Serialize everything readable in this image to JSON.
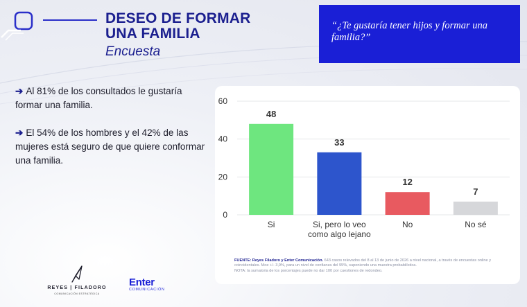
{
  "header": {
    "title_line1": "DESEO DE FORMAR",
    "title_line2": "UNA FAMILIA",
    "subtitle": "Encuesta"
  },
  "question": "“¿Te gustaría tener hijos y formar una familia?”",
  "bullets": [
    "Al 81% de los consultados le gustaría formar una familia.",
    "El 54% de los hombres y el 42% de las mujeres está seguro de que quiere conformar una familia."
  ],
  "chart_data": {
    "type": "bar",
    "categories": [
      "Si",
      "Si, pero lo veo como algo lejano",
      "No",
      "No sé"
    ],
    "category_lines": [
      [
        "Si"
      ],
      [
        "Si, pero lo veo",
        "como algo lejano"
      ],
      [
        "No"
      ],
      [
        "No sé"
      ]
    ],
    "values": [
      48,
      33,
      12,
      7
    ],
    "data_labels": [
      "48",
      "33",
      "12",
      "7"
    ],
    "colors": [
      "#6ee67f",
      "#2d55cc",
      "#e85a60",
      "#d6d7da"
    ],
    "ylim": [
      0,
      60
    ],
    "yticks": [
      0,
      20,
      40,
      60
    ],
    "grid": true
  },
  "source": {
    "label": "FUENTE: Reyes Filadoro y Enter Comunicación.",
    "text": " 643 casos relevados del 8 al 13 de junio de 2026 a nivel nacional, a través de encuestas online y coincidentales. Moe +/- 3,9%, para un nivel de confianza del 95%, suponiendo una muestra probabilística.",
    "note": "NOTA: la sumatoria de los porcentajes puede no dar 100 por cuestiones de redondeo."
  },
  "logos": {
    "rf_name": "REYES | FILADORO",
    "rf_tag": "COMUNICACIÓN ESTRATÉGICA",
    "enter_word": "Enter",
    "enter_sub": "COMUNICACIÓN"
  }
}
